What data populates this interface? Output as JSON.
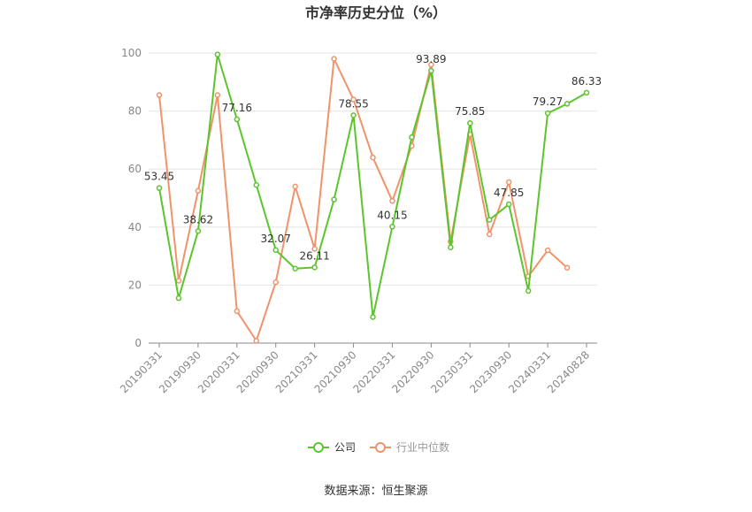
{
  "chart_data": {
    "type": "line",
    "title": "市净率历史分位（%）",
    "categories": [
      "20190331",
      null,
      "20190930",
      null,
      "20200331",
      null,
      "20200930",
      null,
      "20210331",
      null,
      "20210930",
      null,
      "20220331",
      null,
      "20220930",
      null,
      "20230331",
      null,
      "20230930",
      null,
      "20240331",
      null,
      "20240828"
    ],
    "series": [
      {
        "name": "公司",
        "color": "#5cc52c",
        "values": [
          53.45,
          15.5,
          38.62,
          99.5,
          77.16,
          54.5,
          32.07,
          25.7,
          26.11,
          49.5,
          78.55,
          9,
          40.15,
          71,
          93.89,
          33,
          75.85,
          42.5,
          47.85,
          18,
          79.27,
          82.5,
          86.33
        ],
        "value_labels": [
          "53.45",
          null,
          "38.62",
          null,
          "77.16",
          null,
          "32.07",
          null,
          "26.11",
          null,
          "78.55",
          null,
          "40.15",
          null,
          "93.89",
          null,
          "75.85",
          null,
          "47.85",
          null,
          "79.27",
          null,
          "86.33"
        ]
      },
      {
        "name": "行业中位数",
        "color": "#f0936a",
        "values": [
          85.5,
          21.5,
          52.5,
          85.5,
          11,
          0.8,
          21,
          54,
          32.5,
          98,
          84,
          64,
          49,
          68,
          96,
          35,
          72,
          37.5,
          55.5,
          23,
          32,
          26,
          null
        ]
      }
    ],
    "ylim": [
      0,
      100
    ],
    "yticks": [
      0,
      20,
      40,
      60,
      80,
      100
    ],
    "grid": true,
    "source": "数据来源：恒生聚源"
  }
}
